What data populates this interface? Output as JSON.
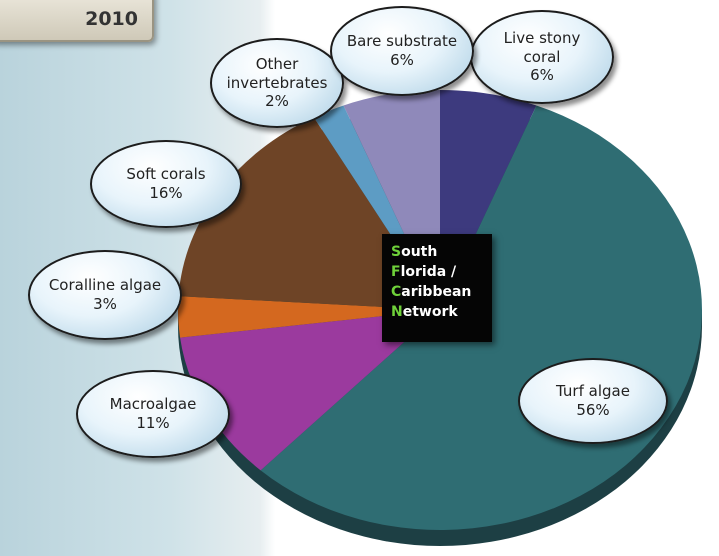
{
  "header": {
    "year": "2010"
  },
  "chart_data": {
    "type": "pie",
    "categories": [
      "Live stony coral",
      "Turf algae",
      "Macroalgae",
      "Coralline algae",
      "Soft corals",
      "Other invertebrates",
      "Bare substrate"
    ],
    "values": [
      6,
      56,
      11,
      3,
      16,
      2,
      6
    ],
    "value_labels": [
      "6%",
      "56%",
      "11%",
      "3%",
      "16%",
      "2%",
      "6%"
    ],
    "colors": [
      "#3d3a7e",
      "#2f6d73",
      "#9b3a9e",
      "#d4681f",
      "#6e4426",
      "#5d9cc4",
      "#8f89ba"
    ],
    "center_label": [
      "South",
      "Florida /",
      "Caribbean",
      "Network"
    ]
  }
}
